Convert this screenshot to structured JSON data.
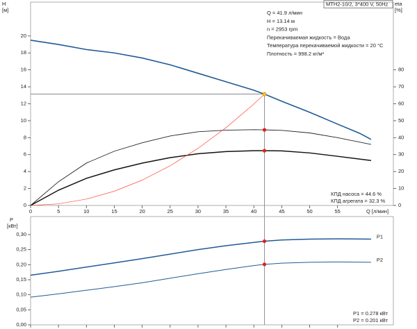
{
  "chart_data": [
    {
      "type": "line",
      "ylabel": "H",
      "yunit": "[м]",
      "y2label": "eta",
      "y2unit": "[%]",
      "xlabel": "Q [л/мин]",
      "title": "MTH2-10/2, 3*400 V, 50Hz",
      "annotations": [
        "Q = 41.9 л/мин",
        "H = 13.14 м",
        "n = 2953 rpm",
        "Перекачиваемая жидкость = Вода",
        "Температура перекачиваемой жидкости = 20 °C",
        "Плотность = 998.2 кг/м³"
      ],
      "notes": [
        "КПД насоса = 44.6 %",
        "КПД агрегата = 32.3 %"
      ],
      "xlim": [
        0,
        65
      ],
      "xticks": [
        0,
        5,
        10,
        15,
        20,
        25,
        30,
        35,
        40,
        45,
        50,
        55
      ],
      "ylim": [
        0,
        24
      ],
      "yticks": [
        0,
        2,
        4,
        6,
        8,
        10,
        12,
        14,
        16,
        18,
        20
      ],
      "y2lim": [
        0,
        120
      ],
      "y2ticks": [
        0,
        10,
        20,
        30,
        40,
        50,
        60,
        70,
        80
      ],
      "series": [
        {
          "color": "#1f5a96",
          "width": 1.6,
          "axis": "y",
          "x": [
            0,
            5,
            10,
            15,
            20,
            25,
            30,
            35,
            40,
            41.9,
            45,
            50,
            55,
            59,
            61
          ],
          "values": [
            19.5,
            19.0,
            18.4,
            18.0,
            17.4,
            16.6,
            15.6,
            14.6,
            13.6,
            13.14,
            12.3,
            11.0,
            9.6,
            8.5,
            7.8
          ]
        },
        {
          "color": "#222222",
          "width": 0.9,
          "axis": "y2",
          "x": [
            0,
            5,
            10,
            15,
            20,
            25,
            30,
            35,
            40,
            41.9,
            45,
            50,
            55,
            61
          ],
          "values": [
            0,
            14,
            25,
            32,
            37,
            41,
            43.5,
            44.4,
            44.7,
            44.6,
            44.3,
            42.8,
            40,
            36
          ]
        },
        {
          "color": "#111111",
          "width": 1.5,
          "axis": "y2",
          "x": [
            0,
            5,
            10,
            15,
            20,
            25,
            30,
            35,
            40,
            41.9,
            45,
            50,
            55,
            61
          ],
          "values": [
            0,
            9,
            16,
            21,
            25,
            28.2,
            30.5,
            31.8,
            32.3,
            32.3,
            32.2,
            31,
            29,
            26.5
          ]
        },
        {
          "color": "#ff4a3a",
          "width": 0.7,
          "axis": "y",
          "x": [
            0,
            5,
            10,
            15,
            20,
            25,
            30,
            35,
            40,
            41.9
          ],
          "values": [
            0,
            0.19,
            0.75,
            1.68,
            2.99,
            4.68,
            6.74,
            9.17,
            11.97,
            13.14
          ]
        }
      ],
      "markers": [
        {
          "x": 41.9,
          "y": 13.14,
          "color": "#f5c518",
          "axis": "y"
        },
        {
          "x": 41.9,
          "y": 44.6,
          "color": "#e0201a",
          "axis": "y2"
        },
        {
          "x": 41.9,
          "y": 32.3,
          "color": "#e0201a",
          "axis": "y2"
        }
      ]
    },
    {
      "type": "line",
      "ylabel": "P",
      "yunit": "[кВт]",
      "notes": [
        "P1 = 0.278 кВт",
        "P2 = 0.201 кВт"
      ],
      "xlim": [
        0,
        65
      ],
      "xticks": [
        0,
        5,
        10,
        15,
        20,
        25,
        30,
        35,
        40,
        45,
        50,
        55
      ],
      "ylim": [
        0,
        0.36
      ],
      "yticks": [
        {
          "value": 0,
          "label": "0,00"
        },
        {
          "value": 0.05,
          "label": "0,05"
        },
        {
          "value": 0.1,
          "label": "0,10"
        },
        {
          "value": 0.15,
          "label": "0,15"
        },
        {
          "value": 0.2,
          "label": "0,20"
        },
        {
          "value": 0.25,
          "label": "0,25"
        },
        {
          "value": 0.3,
          "label": "0,30"
        }
      ],
      "series": [
        {
          "name": "P1",
          "color": "#1f5a96",
          "width": 1.5,
          "x": [
            0,
            5,
            10,
            15,
            20,
            25,
            30,
            35,
            40,
            41.9,
            45,
            50,
            55,
            61
          ],
          "values": [
            0.165,
            0.178,
            0.192,
            0.206,
            0.22,
            0.235,
            0.25,
            0.263,
            0.274,
            0.278,
            0.282,
            0.285,
            0.286,
            0.285
          ]
        },
        {
          "name": "P2",
          "color": "#1f5a96",
          "width": 1.0,
          "x": [
            0,
            5,
            10,
            15,
            20,
            25,
            30,
            35,
            40,
            41.9,
            45,
            50,
            55,
            61
          ],
          "values": [
            0.092,
            0.103,
            0.115,
            0.127,
            0.14,
            0.155,
            0.17,
            0.184,
            0.197,
            0.201,
            0.205,
            0.208,
            0.209,
            0.208
          ]
        }
      ],
      "markers": [
        {
          "x": 41.9,
          "y": 0.278,
          "color": "#e0201a"
        },
        {
          "x": 41.9,
          "y": 0.201,
          "color": "#e0201a"
        }
      ]
    }
  ]
}
